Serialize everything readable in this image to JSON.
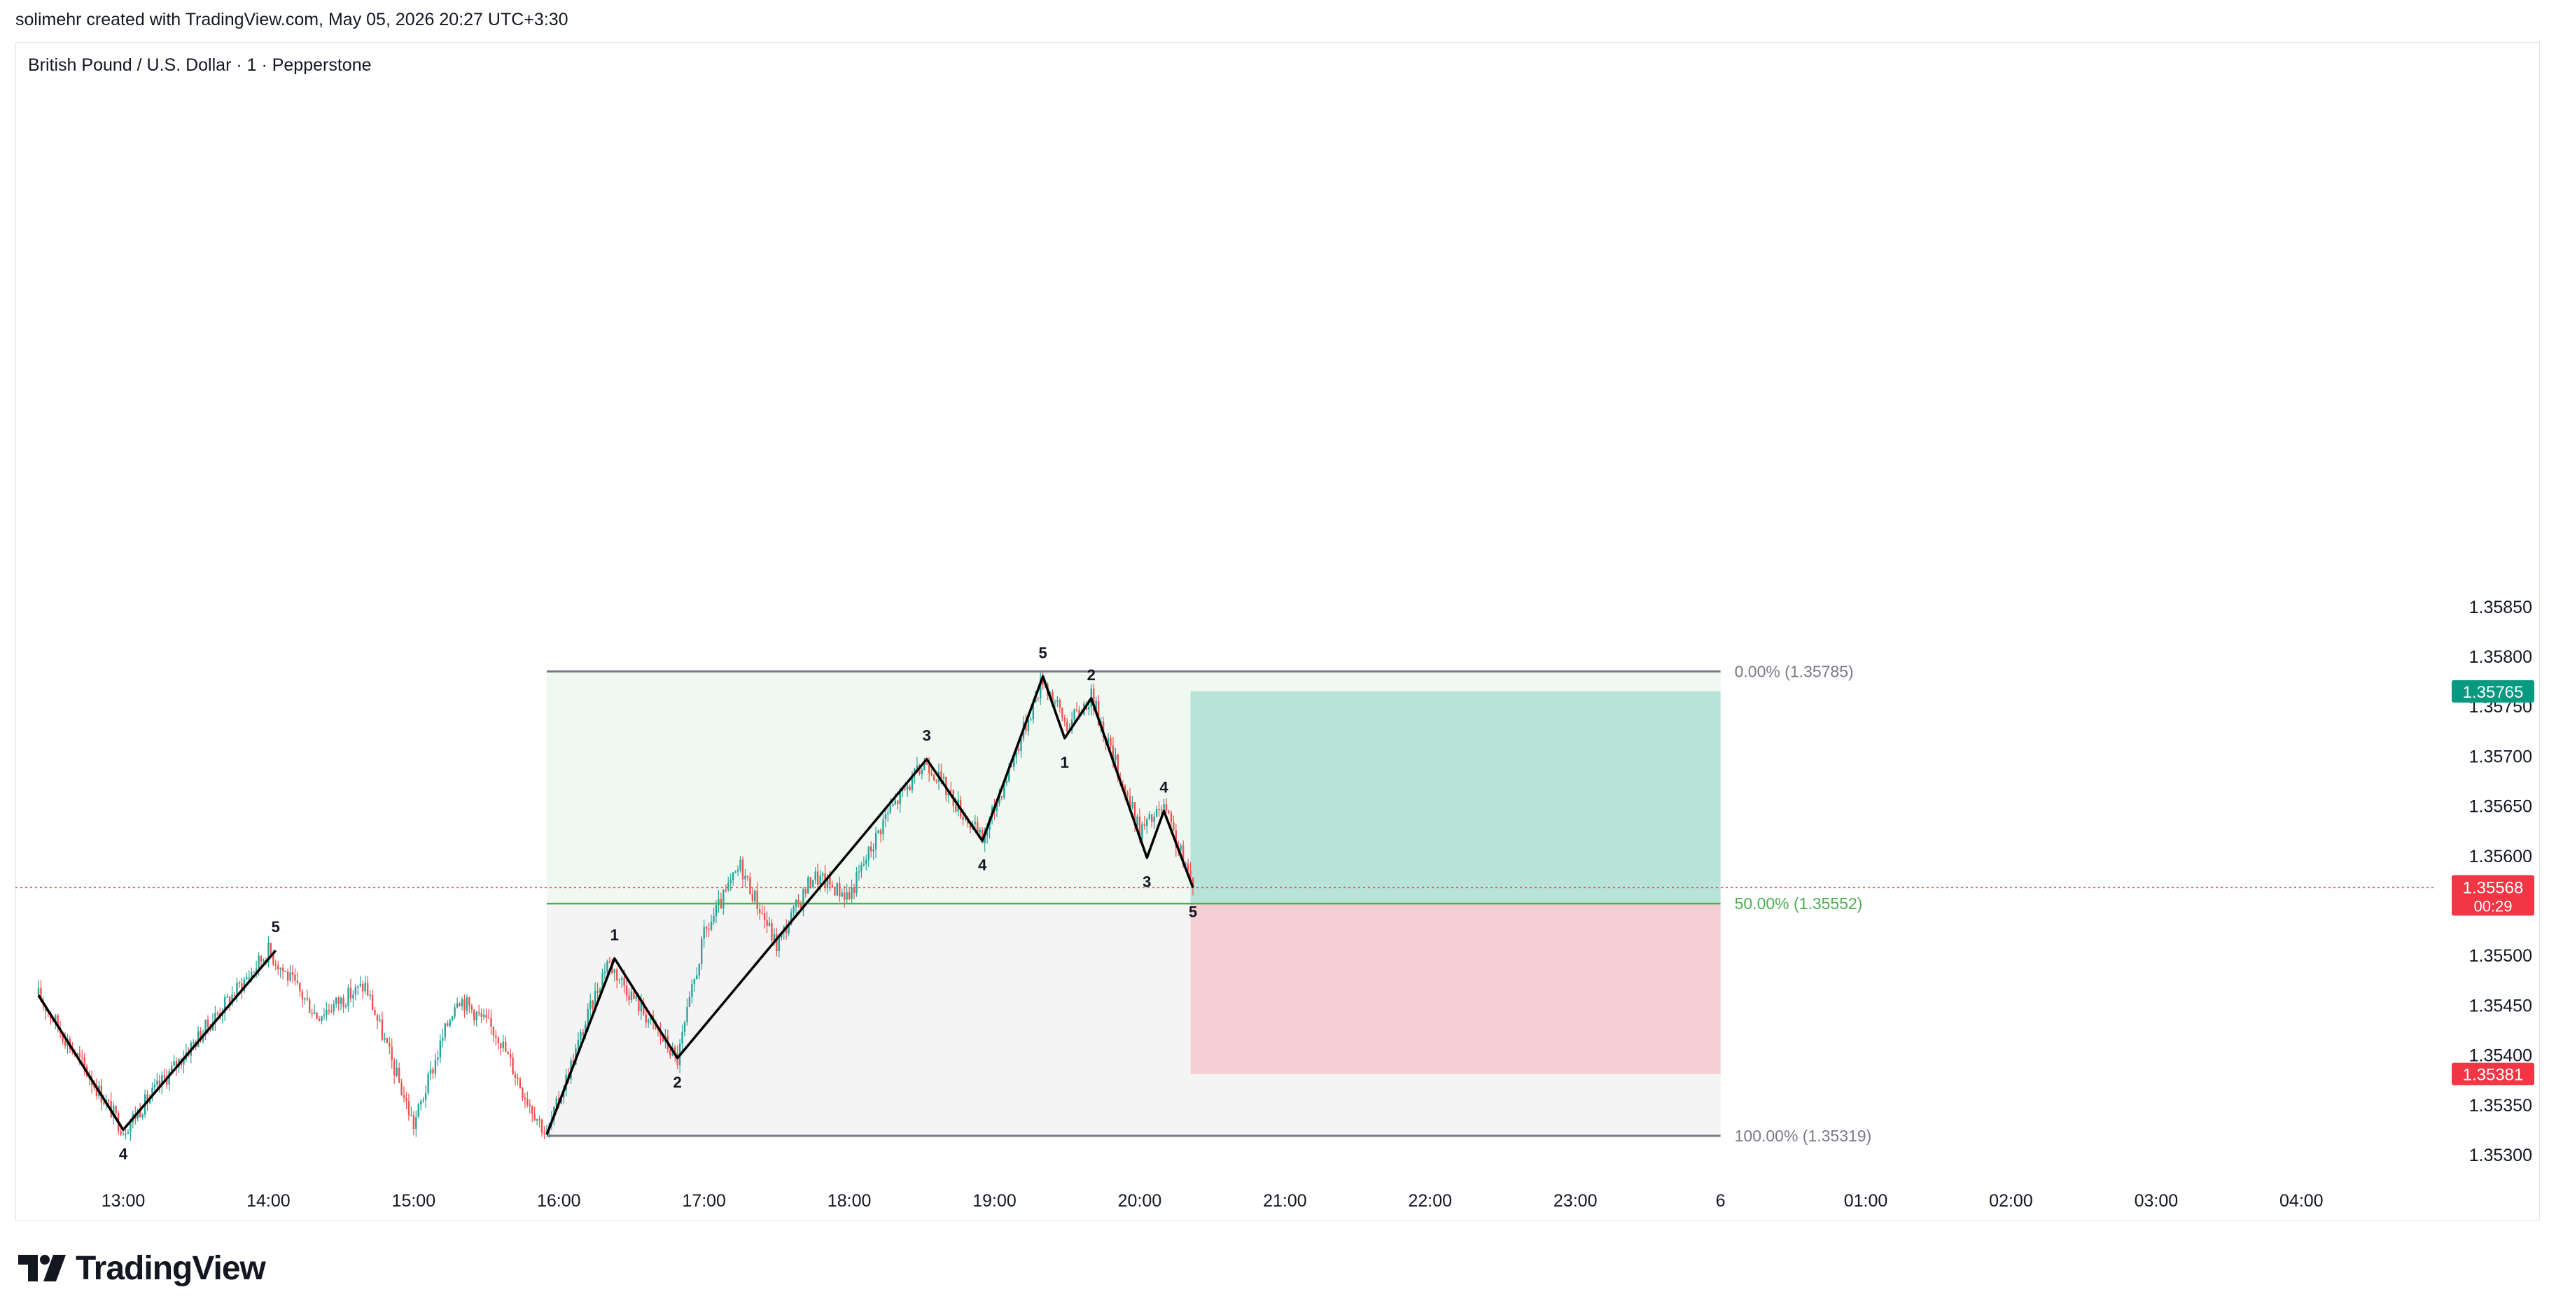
{
  "header": {
    "attribution": "solimehr created with TradingView.com, May 05, 2026 20:27 UTC+3:30"
  },
  "footer": {
    "brand": "TradingView"
  },
  "colors": {
    "up": "#26a69a",
    "down": "#ef5350",
    "fib_top_zone": "#f1f8f1",
    "fib_bottom_zone": "#f4f4f4",
    "profit_zone": "#b8e3d8",
    "loss_zone": "#f5cfd3",
    "fib_mid": "#4caf50",
    "fib_edge": "#787b86",
    "current_price": "#f23645",
    "target_badge": "#089981",
    "stop_badge": "#f23645",
    "level_badge": "#787b86"
  },
  "chart_data": {
    "type": "candlestick",
    "title": "British Pound / U.S. Dollar · 1 · Pepperstone",
    "ylim": [
      1.3527,
      1.3587
    ],
    "y_ticks": [
      "1.35850",
      "1.35800",
      "1.35750",
      "1.35700",
      "1.35650",
      "1.35600",
      "1.35500",
      "1.35450",
      "1.35400",
      "1.35350",
      "1.35300"
    ],
    "x_ticks": [
      {
        "label": "13:00",
        "t": 780
      },
      {
        "label": "14:00",
        "t": 840
      },
      {
        "label": "15:00",
        "t": 900
      },
      {
        "label": "16:00",
        "t": 960
      },
      {
        "label": "17:00",
        "t": 1020
      },
      {
        "label": "18:00",
        "t": 1080
      },
      {
        "label": "19:00",
        "t": 1140
      },
      {
        "label": "20:00",
        "t": 1200
      },
      {
        "label": "21:00",
        "t": 1260
      },
      {
        "label": "22:00",
        "t": 1320
      },
      {
        "label": "23:00",
        "t": 1380
      },
      {
        "label": "6",
        "t": 1440
      },
      {
        "label": "01:00",
        "t": 1500
      },
      {
        "label": "02:00",
        "t": 1560
      },
      {
        "label": "03:00",
        "t": 1620
      },
      {
        "label": "04:00",
        "t": 1680
      }
    ],
    "price_path": [
      [
        745,
        1.3546
      ],
      [
        780,
        1.35325
      ],
      [
        840,
        1.35505
      ],
      [
        860,
        1.3544
      ],
      [
        880,
        1.3547
      ],
      [
        900,
        1.3533
      ],
      [
        918,
        1.3546
      ],
      [
        935,
        1.3542
      ],
      [
        945,
        1.35365
      ],
      [
        955,
        1.3532
      ],
      [
        980,
        1.35495
      ],
      [
        1009,
        1.35395
      ],
      [
        1020,
        1.3552
      ],
      [
        1035,
        1.3559
      ],
      [
        1050,
        1.3551
      ],
      [
        1065,
        1.3558
      ],
      [
        1080,
        1.3556
      ],
      [
        1095,
        1.3564
      ],
      [
        1112,
        1.35695
      ],
      [
        1135,
        1.35615
      ],
      [
        1160,
        1.35778
      ],
      [
        1170,
        1.3573
      ],
      [
        1180,
        1.3576
      ],
      [
        1200,
        1.35625
      ],
      [
        1210,
        1.35648
      ],
      [
        1222,
        1.35568
      ]
    ],
    "wave_lines": [
      {
        "name": "waves-left",
        "points": [
          [
            745,
            1.3546
          ],
          [
            780,
            1.35325
          ],
          [
            843,
            1.35505
          ]
        ]
      },
      {
        "name": "waves-main",
        "points": [
          [
            955,
            1.3532
          ],
          [
            983,
            1.35497
          ],
          [
            1009,
            1.35397
          ],
          [
            1112,
            1.35697
          ],
          [
            1135,
            1.35615
          ],
          [
            1160,
            1.3578
          ],
          [
            1169,
            1.35718
          ],
          [
            1180,
            1.35758
          ],
          [
            1203,
            1.35598
          ],
          [
            1210,
            1.35645
          ],
          [
            1222,
            1.35568
          ]
        ]
      }
    ],
    "wave_labels": [
      {
        "text": "4",
        "t": 780,
        "p": 1.35325,
        "pos": "below"
      },
      {
        "text": "5",
        "t": 843,
        "p": 1.35505,
        "pos": "above"
      },
      {
        "text": "1",
        "t": 983,
        "p": 1.35497,
        "pos": "above"
      },
      {
        "text": "2",
        "t": 1009,
        "p": 1.35397,
        "pos": "below"
      },
      {
        "text": "3",
        "t": 1112,
        "p": 1.35697,
        "pos": "above"
      },
      {
        "text": "4",
        "t": 1135,
        "p": 1.35615,
        "pos": "below"
      },
      {
        "text": "5",
        "t": 1160,
        "p": 1.3578,
        "pos": "above"
      },
      {
        "text": "1",
        "t": 1169,
        "p": 1.35718,
        "pos": "below"
      },
      {
        "text": "2",
        "t": 1180,
        "p": 1.35758,
        "pos": "above"
      },
      {
        "text": "3",
        "t": 1203,
        "p": 1.35598,
        "pos": "below"
      },
      {
        "text": "4",
        "t": 1210,
        "p": 1.35645,
        "pos": "above"
      },
      {
        "text": "5",
        "t": 1222,
        "p": 1.35568,
        "pos": "below"
      }
    ],
    "fib": {
      "t_start": 955,
      "t_end": 1440,
      "levels": [
        {
          "label": "0.00% (1.35785)",
          "price": 1.35785,
          "role": "edge"
        },
        {
          "label": "50.00% (1.35552)",
          "price": 1.35552,
          "role": "mid"
        },
        {
          "label": "100.00% (1.35319)",
          "price": 1.35319,
          "role": "edge"
        }
      ]
    },
    "position": {
      "t_start": 1221,
      "t_end": 1440,
      "entry": 1.35552,
      "target": 1.35765,
      "stop": 1.35381
    },
    "current_price": {
      "price": 1.35568,
      "label": "1.35568",
      "countdown": "00:29"
    },
    "price_badges": [
      {
        "label": "1.35765",
        "price": 1.35765,
        "role": "target"
      },
      {
        "label": "1.35552",
        "price": 1.35552,
        "role": "level"
      },
      {
        "label": "1.35381",
        "price": 1.35381,
        "role": "stop"
      }
    ]
  }
}
